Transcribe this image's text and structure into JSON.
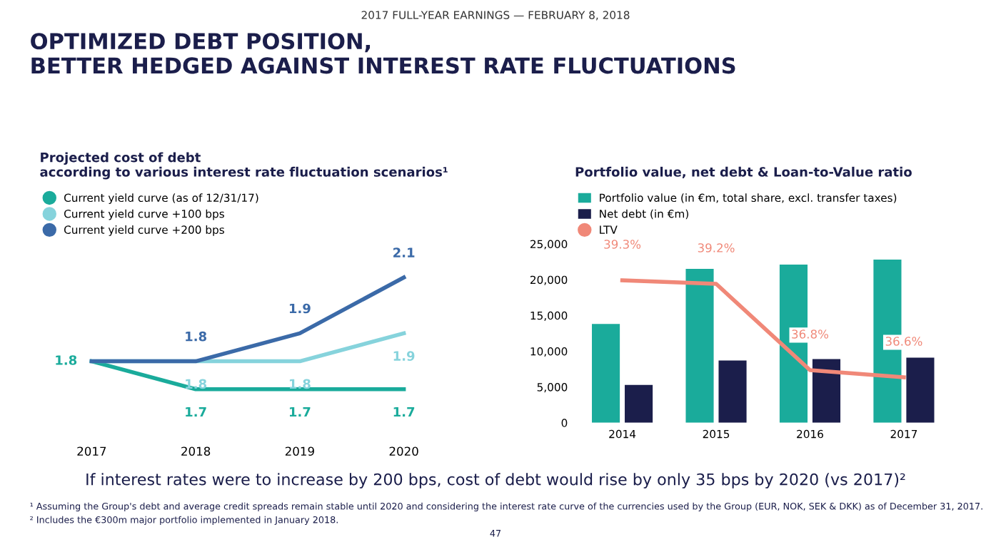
{
  "chart_data": [
    {
      "type": "other",
      "title": "OPTIMIZED DEBT POSITION,\nBETTER HEDGED AGAINST INTEREST RATE FLUCTUATIONS",
      "subtitle": "2017 FULL-YEAR EARNINGS — FEBRUARY 8, 2018",
      "annotations": [
        "If interest rates were to increase by 200 bps, cost of debt would rise by only 35 bps by 2020 (vs 2017)²",
        "¹ Assuming the Group's debt and average credit spreads remain stable until 2020 and considering the interest rate curve of the currencies used by the Group (EUR, NOK, SEK & DKK) as of December 31, 2017.",
        "² Includes the €300m major portfolio implemented in January 2018.",
        "47"
      ]
    },
    {
      "type": "line",
      "title": "Projected cost of debt\naccording to various interest rate fluctuation scenarios¹",
      "categories": [
        "2017",
        "2018",
        "2019",
        "2020"
      ],
      "tick_labels": "x",
      "legend": "top left",
      "marker": "none",
      "line_style": "solid",
      "grid": false,
      "series": [
        {
          "name": "Current yield curve (as of 12/31/17)",
          "color": "#1aab9b",
          "values": [
            1.8,
            1.7,
            1.7,
            1.7
          ],
          "value_labels": [
            "1.8",
            "1.7",
            "1.7",
            "1.7"
          ]
        },
        {
          "name": "Current yield curve +100 bps",
          "color": "#86d3dc",
          "values": [
            1.8,
            1.8,
            1.8,
            1.9
          ],
          "value_labels": [
            null,
            "1.8",
            "1.8",
            "1.9"
          ]
        },
        {
          "name": "Current yield curve +200 bps",
          "color": "#3b6aa8",
          "values": [
            1.8,
            1.8,
            1.9,
            2.1
          ],
          "value_labels": [
            null,
            "1.8",
            "1.9",
            "2.1"
          ]
        }
      ]
    },
    {
      "type": "bar",
      "title": "Portfolio value, net debt & Loan-to-Value ratio",
      "categories": [
        "2014",
        "2015",
        "2016",
        "2017"
      ],
      "ylim": [
        0,
        25000
      ],
      "yticks": [
        {
          "value": 0,
          "label": "0"
        },
        {
          "value": 5000,
          "label": "5,000"
        },
        {
          "value": 10000,
          "label": "10,000"
        },
        {
          "value": 15000,
          "label": "15,000"
        },
        {
          "value": 20000,
          "label": "20,000"
        },
        {
          "value": 25000,
          "label": "25,000"
        }
      ],
      "legend": "top left",
      "grid": false,
      "series": [
        {
          "name": "Portfolio value (in €m, total share, excl. transfer taxes)",
          "color": "#1aab9b",
          "values": [
            13800,
            21500,
            22100,
            22800
          ]
        },
        {
          "name": "Net debt (in €m)",
          "color": "#1b1e4b",
          "values": [
            5300,
            8700,
            8900,
            9100
          ]
        },
        {
          "name": "LTV",
          "type": "line",
          "axis": "y2",
          "color": "#f08878",
          "values": [
            39.3,
            39.2,
            36.8,
            36.6
          ],
          "value_labels": [
            "39.3%",
            "39.2%",
            "36.8%",
            "36.6%"
          ]
        }
      ]
    }
  ]
}
